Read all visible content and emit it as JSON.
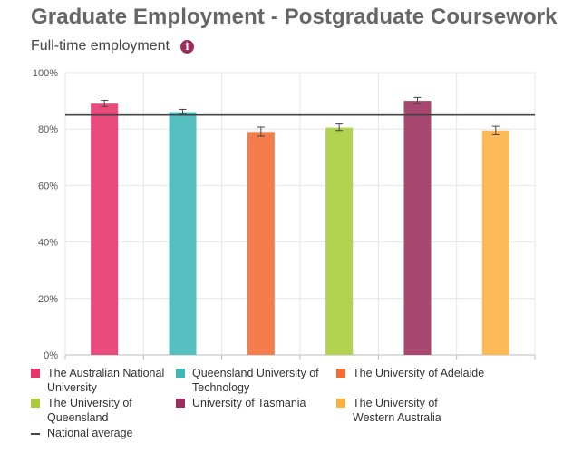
{
  "header": {
    "title": "Graduate Employment - Postgraduate Coursework",
    "subtitle": "Full-time employment",
    "info_icon": "info-icon"
  },
  "chart_data": {
    "type": "bar",
    "title": "Graduate Employment - Postgraduate Coursework",
    "subtitle": "Full-time employment",
    "xlabel": "",
    "ylabel": "",
    "ylim": [
      0,
      100
    ],
    "yticks": [
      "0%",
      "20%",
      "40%",
      "60%",
      "80%",
      "100%"
    ],
    "ytick_values": [
      0,
      20,
      40,
      60,
      80,
      100
    ],
    "grid": true,
    "legend_position": "bottom",
    "categories": [
      "The Australian National University",
      "Queensland University of Technology",
      "The University of Adelaide",
      "The University of Queensland",
      "University of Tasmania",
      "The University of Western Australia"
    ],
    "values": [
      89,
      86,
      79,
      80.5,
      90,
      79.5
    ],
    "error_low": [
      88,
      85.3,
      77.5,
      79.5,
      89,
      78
    ],
    "error_high": [
      90.2,
      87,
      80.7,
      81.8,
      91.2,
      81
    ],
    "colors": [
      "#e8336b",
      "#3fb8b8",
      "#f36d33",
      "#a8cc3a",
      "#9b2d5c",
      "#fcb040"
    ],
    "national_average": 85,
    "national_average_label": "National average",
    "national_average_color": "#444444"
  },
  "legend": {
    "items": [
      {
        "label": "The Australian National University",
        "color": "#e8336b"
      },
      {
        "label": "Queensland University of Technology",
        "color": "#3fb8b8"
      },
      {
        "label": "The University of Adelaide",
        "color": "#f36d33"
      },
      {
        "label": "The University of Queensland",
        "color": "#a8cc3a"
      },
      {
        "label": "University of Tasmania",
        "color": "#9b2d5c"
      },
      {
        "label": "The University of Western Australia",
        "color": "#fcb040"
      }
    ],
    "national_average": "National average"
  }
}
